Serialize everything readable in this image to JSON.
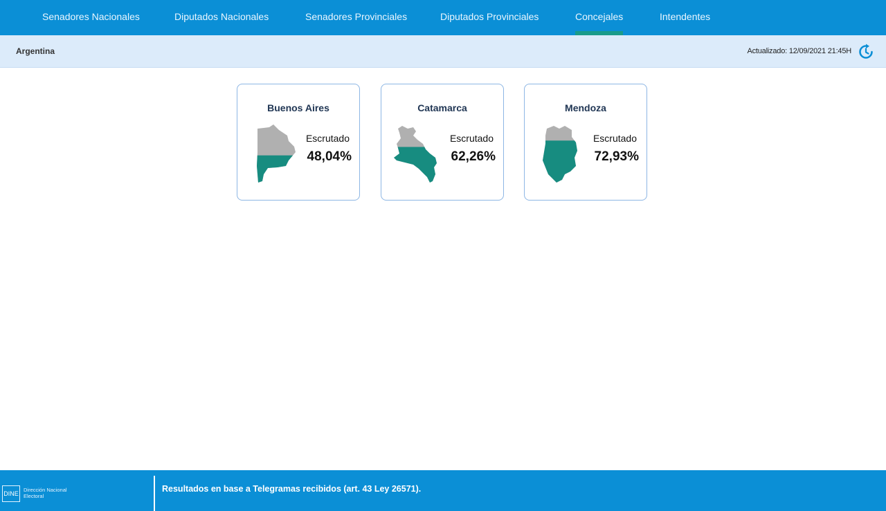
{
  "nav": {
    "tabs": [
      {
        "label": "Senadores Nacionales"
      },
      {
        "label": "Diputados Nacionales"
      },
      {
        "label": "Senadores Provinciales"
      },
      {
        "label": "Diputados Provinciales"
      },
      {
        "label": "Concejales",
        "active": true
      },
      {
        "label": "Intendentes"
      }
    ]
  },
  "subbar": {
    "breadcrumb": "Argentina",
    "updated": "Actualizado: 12/09/2021 21:45H",
    "refresh_icon": "refresh-icon"
  },
  "colors": {
    "header": "#0b8fd6",
    "subbar": "#dcebfa",
    "counted": "#178c80",
    "pending": "#b0b0b0",
    "card_border": "#8db6e4"
  },
  "provinces": [
    {
      "name": "Buenos Aires",
      "label": "Escrutado",
      "value": "48,04%",
      "fraction": 0.4804,
      "icon": "buenos-aires-map-icon"
    },
    {
      "name": "Catamarca",
      "label": "Escrutado",
      "value": "62,26%",
      "fraction": 0.6226,
      "icon": "catamarca-map-icon"
    },
    {
      "name": "Mendoza",
      "label": "Escrutado",
      "value": "72,93%",
      "fraction": 0.7293,
      "icon": "mendoza-map-icon"
    }
  ],
  "footer": {
    "logo_text": "DINE",
    "org_line1": "Dirección Nacional",
    "org_line2": "Electoral",
    "note": "Resultados en base a Telegramas recibidos (art. 43 Ley 26571)."
  }
}
